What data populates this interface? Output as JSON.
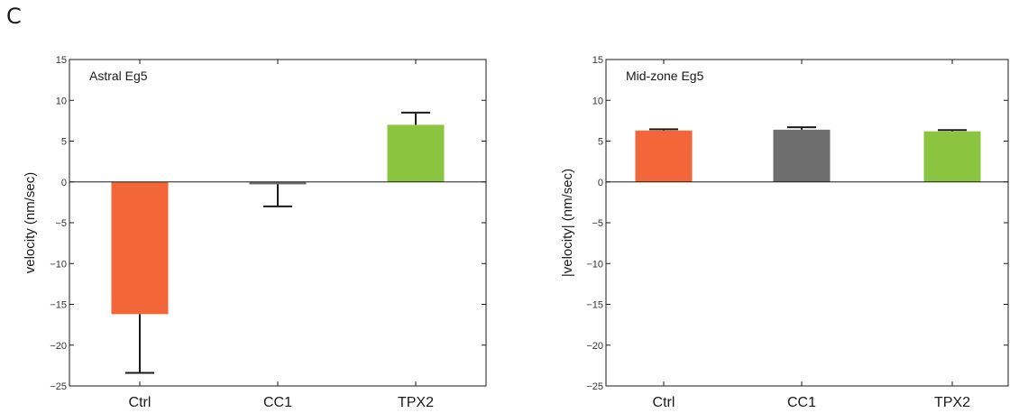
{
  "panel_label": "C",
  "chart_data": [
    {
      "type": "bar",
      "title": "Astral Eg5",
      "xlabel": "",
      "ylabel": "velocity (nm/sec)",
      "ylim": [
        -25,
        15
      ],
      "yticks": [
        -25,
        -20,
        -15,
        -10,
        -5,
        0,
        5,
        10,
        15
      ],
      "ytick_labels": [
        "−25",
        "−20",
        "−15",
        "−10",
        "−5",
        "0",
        "5",
        "10",
        "15"
      ],
      "categories": [
        "Ctrl",
        "CC1",
        "TPX2"
      ],
      "values": [
        -16.2,
        -0.3,
        7.0
      ],
      "errors": [
        7.2,
        2.7,
        1.5
      ],
      "colors": [
        "#f26637",
        "#6e6e6e",
        "#8bc43f"
      ],
      "grid": false
    },
    {
      "type": "bar",
      "title": "Mid-zone Eg5",
      "xlabel": "",
      "ylabel": "|velocity| (nm/sec)",
      "ylim": [
        -25,
        15
      ],
      "yticks": [
        -25,
        -20,
        -15,
        -10,
        -5,
        0,
        5,
        10,
        15
      ],
      "ytick_labels": [
        "−25",
        "−20",
        "−15",
        "−10",
        "−5",
        "0",
        "5",
        "10",
        "15"
      ],
      "categories": [
        "Ctrl",
        "CC1",
        "TPX2"
      ],
      "values": [
        6.3,
        6.4,
        6.2
      ],
      "errors": [
        0.15,
        0.3,
        0.15
      ],
      "colors": [
        "#f26637",
        "#6e6e6e",
        "#8bc43f"
      ],
      "grid": false
    }
  ]
}
